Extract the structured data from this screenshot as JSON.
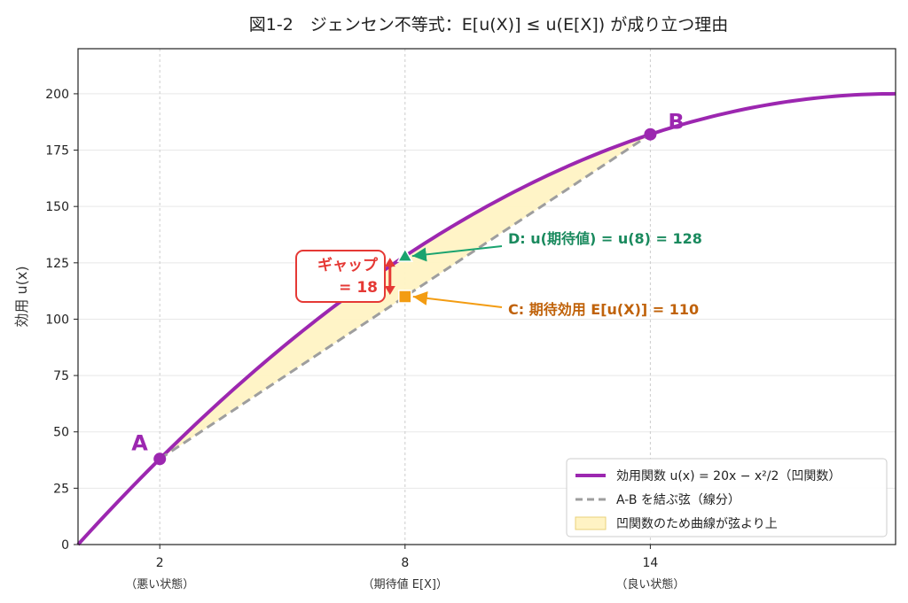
{
  "chart_data": {
    "type": "line",
    "title": "図1-2　ジェンセン不等式：E[u(X)] ≤ u(E[X]) が成り立つ理由",
    "ylabel": "効用 u(x)",
    "xlabel": "",
    "xlim": [
      0,
      20
    ],
    "ylim": [
      0,
      220
    ],
    "grid": true,
    "x_ticks": [
      {
        "value": 2,
        "label": "2",
        "sublabel": "（悪い状態）"
      },
      {
        "value": 8,
        "label": "8",
        "sublabel": "（期待値 E[X]）"
      },
      {
        "value": 14,
        "label": "14",
        "sublabel": "（良い状態）"
      }
    ],
    "y_ticks": [
      0,
      25,
      50,
      75,
      100,
      125,
      150,
      175,
      200
    ],
    "series": [
      {
        "name": "効用関数 u(x) = 20x − x²/2（凹関数）",
        "kind": "curve",
        "formula": "20x - x^2/2",
        "color": "#9c27b0"
      },
      {
        "name": "A-B を結ぶ弦（線分）",
        "kind": "chord",
        "x": [
          2,
          14
        ],
        "y": [
          38,
          182
        ],
        "color": "#9e9e9e"
      },
      {
        "name": "凹関数のため曲線が弦より上",
        "kind": "fill",
        "color": "#fff3c4"
      }
    ],
    "points": [
      {
        "id": "A",
        "label": "A",
        "x": 2,
        "y": 38
      },
      {
        "id": "B",
        "label": "B",
        "x": 14,
        "y": 182
      }
    ],
    "markers": [
      {
        "id": "D",
        "x": 8,
        "y": 128,
        "label": "D: u(期待値) = u(8) = 128",
        "color": "#1aa36f"
      },
      {
        "id": "C",
        "x": 8,
        "y": 110,
        "label": "C: 期待効用 E[u(X)] = 110",
        "color": "#f39c12"
      }
    ],
    "gap": {
      "value": 18,
      "label_line1": "ギャップ",
      "label_line2": "= 18",
      "color": "#e53935"
    },
    "legend_position": "bottom-right"
  }
}
